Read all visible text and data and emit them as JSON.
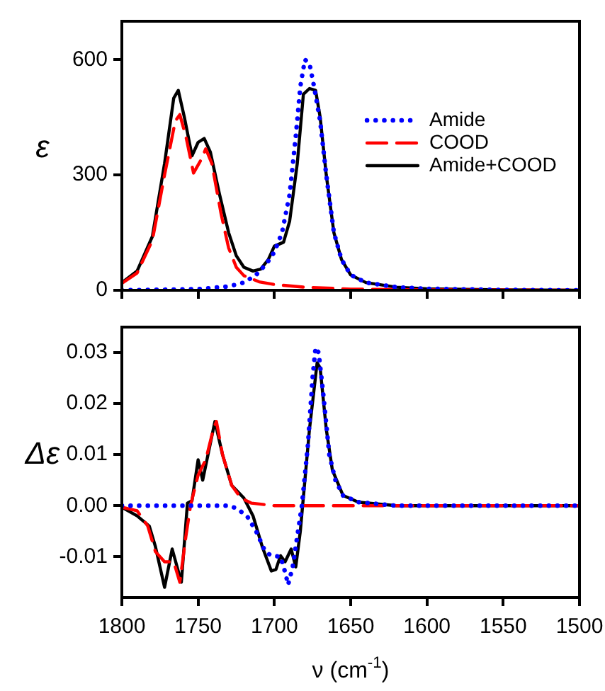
{
  "chart_data": [
    {
      "type": "line",
      "ylabel": "ε",
      "xlim": [
        1800,
        1500
      ],
      "xticks": [
        1800,
        1750,
        1700,
        1650,
        1600,
        1550,
        1500
      ],
      "ylim": [
        0,
        700
      ],
      "yticks": [
        0,
        300,
        600
      ],
      "tick_labels": "y",
      "grid": false,
      "legend": "top right",
      "series": [
        {
          "name": "Amide",
          "color": "#0000ff",
          "line_style": "dotted",
          "x": [
            1800,
            1750,
            1730,
            1720,
            1712,
            1705,
            1700,
            1695,
            1690,
            1686,
            1683,
            1680,
            1677,
            1674,
            1670,
            1666,
            1661,
            1656,
            1650,
            1640,
            1620,
            1600,
            1550,
            1500
          ],
          "values": [
            0,
            3,
            10,
            20,
            40,
            70,
            100,
            150,
            250,
            400,
            530,
            600,
            590,
            530,
            440,
            300,
            150,
            80,
            40,
            20,
            8,
            4,
            1,
            0
          ]
        },
        {
          "name": "COOD",
          "color": "#ff0000",
          "line_style": "dashed",
          "x": [
            1800,
            1790,
            1780,
            1772,
            1765,
            1762,
            1758,
            1753,
            1748,
            1745,
            1741,
            1735,
            1730,
            1725,
            1720,
            1710,
            1700,
            1680,
            1650,
            1600,
            1500
          ],
          "values": [
            18,
            45,
            130,
            300,
            440,
            457,
            400,
            305,
            340,
            368,
            330,
            200,
            110,
            60,
            38,
            22,
            15,
            8,
            3,
            1,
            0
          ]
        },
        {
          "name": "Amide+COOD",
          "color": "#000000",
          "line_style": "solid",
          "x": [
            1800,
            1790,
            1780,
            1772,
            1766,
            1763,
            1759,
            1754,
            1750,
            1746,
            1742,
            1736,
            1730,
            1725,
            1720,
            1714,
            1709,
            1704,
            1700,
            1697,
            1694,
            1690,
            1685,
            1681,
            1677,
            1673,
            1670,
            1666,
            1661,
            1656,
            1650,
            1640,
            1620,
            1600,
            1550,
            1500
          ],
          "values": [
            20,
            50,
            140,
            330,
            500,
            520,
            450,
            350,
            385,
            395,
            360,
            250,
            150,
            90,
            60,
            50,
            55,
            80,
            115,
            120,
            125,
            180,
            330,
            510,
            525,
            520,
            450,
            300,
            150,
            80,
            40,
            20,
            8,
            4,
            1,
            0
          ]
        }
      ]
    },
    {
      "type": "line",
      "ylabel": "Δε",
      "xlabel": "ν (cm$^{-1}$)",
      "xlim": [
        1800,
        1500
      ],
      "xticks": [
        1800,
        1750,
        1700,
        1650,
        1600,
        1550,
        1500
      ],
      "ylim": [
        -0.018,
        0.035
      ],
      "yticks": [
        -0.01,
        {
          "value": 0,
          "label": "0.00"
        },
        0.01,
        0.02,
        0.03
      ],
      "grid": false,
      "series": [
        {
          "color": "#0000ff",
          "line_style": "dotted",
          "x": [
            1800,
            1730,
            1725,
            1718,
            1712,
            1706,
            1702,
            1696,
            1693,
            1691,
            1688,
            1685,
            1682,
            1678,
            1675,
            1673,
            1671,
            1668,
            1664,
            1660,
            1655,
            1645,
            1620,
            1500
          ],
          "values": [
            0,
            0,
            -0.0005,
            -0.002,
            -0.005,
            -0.009,
            -0.0098,
            -0.01,
            -0.013,
            -0.0155,
            -0.012,
            -0.006,
            0,
            0.012,
            0.025,
            0.031,
            0.03,
            0.022,
            0.01,
            0.005,
            0.002,
            0.0007,
            0,
            0
          ]
        },
        {
          "color": "#ff0000",
          "line_style": "dashed",
          "x": [
            1800,
            1790,
            1783,
            1778,
            1772,
            1766,
            1762,
            1758,
            1755,
            1750,
            1745,
            1740,
            1738,
            1734,
            1728,
            1722,
            1715,
            1700,
            1500
          ],
          "values": [
            -0.0003,
            -0.001,
            -0.004,
            -0.009,
            -0.011,
            -0.011,
            -0.015,
            -0.006,
            0,
            0.006,
            0.009,
            0.015,
            0.0165,
            0.01,
            0.004,
            0.0015,
            0.0005,
            0,
            0
          ]
        },
        {
          "color": "#000000",
          "line_style": "solid",
          "x": [
            1800,
            1790,
            1782,
            1778,
            1772,
            1767,
            1761,
            1757,
            1754,
            1750,
            1747,
            1739,
            1734,
            1728,
            1720,
            1714,
            1708,
            1702,
            1699,
            1696,
            1693,
            1689,
            1686,
            1683,
            1680,
            1677,
            1672,
            1670,
            1666,
            1662,
            1655,
            1645,
            1620,
            1500
          ],
          "values": [
            -0.0003,
            -0.002,
            -0.004,
            -0.008,
            -0.016,
            -0.0085,
            -0.015,
            0.0005,
            0.001,
            0.009,
            0.005,
            0.0165,
            0.01,
            0.004,
            0.0015,
            -0.002,
            -0.008,
            -0.0128,
            -0.0125,
            -0.0098,
            -0.011,
            -0.0085,
            -0.012,
            -0.005,
            0.005,
            0.015,
            0.028,
            0.027,
            0.015,
            0.007,
            0.002,
            0.0007,
            0,
            0
          ]
        }
      ]
    }
  ]
}
